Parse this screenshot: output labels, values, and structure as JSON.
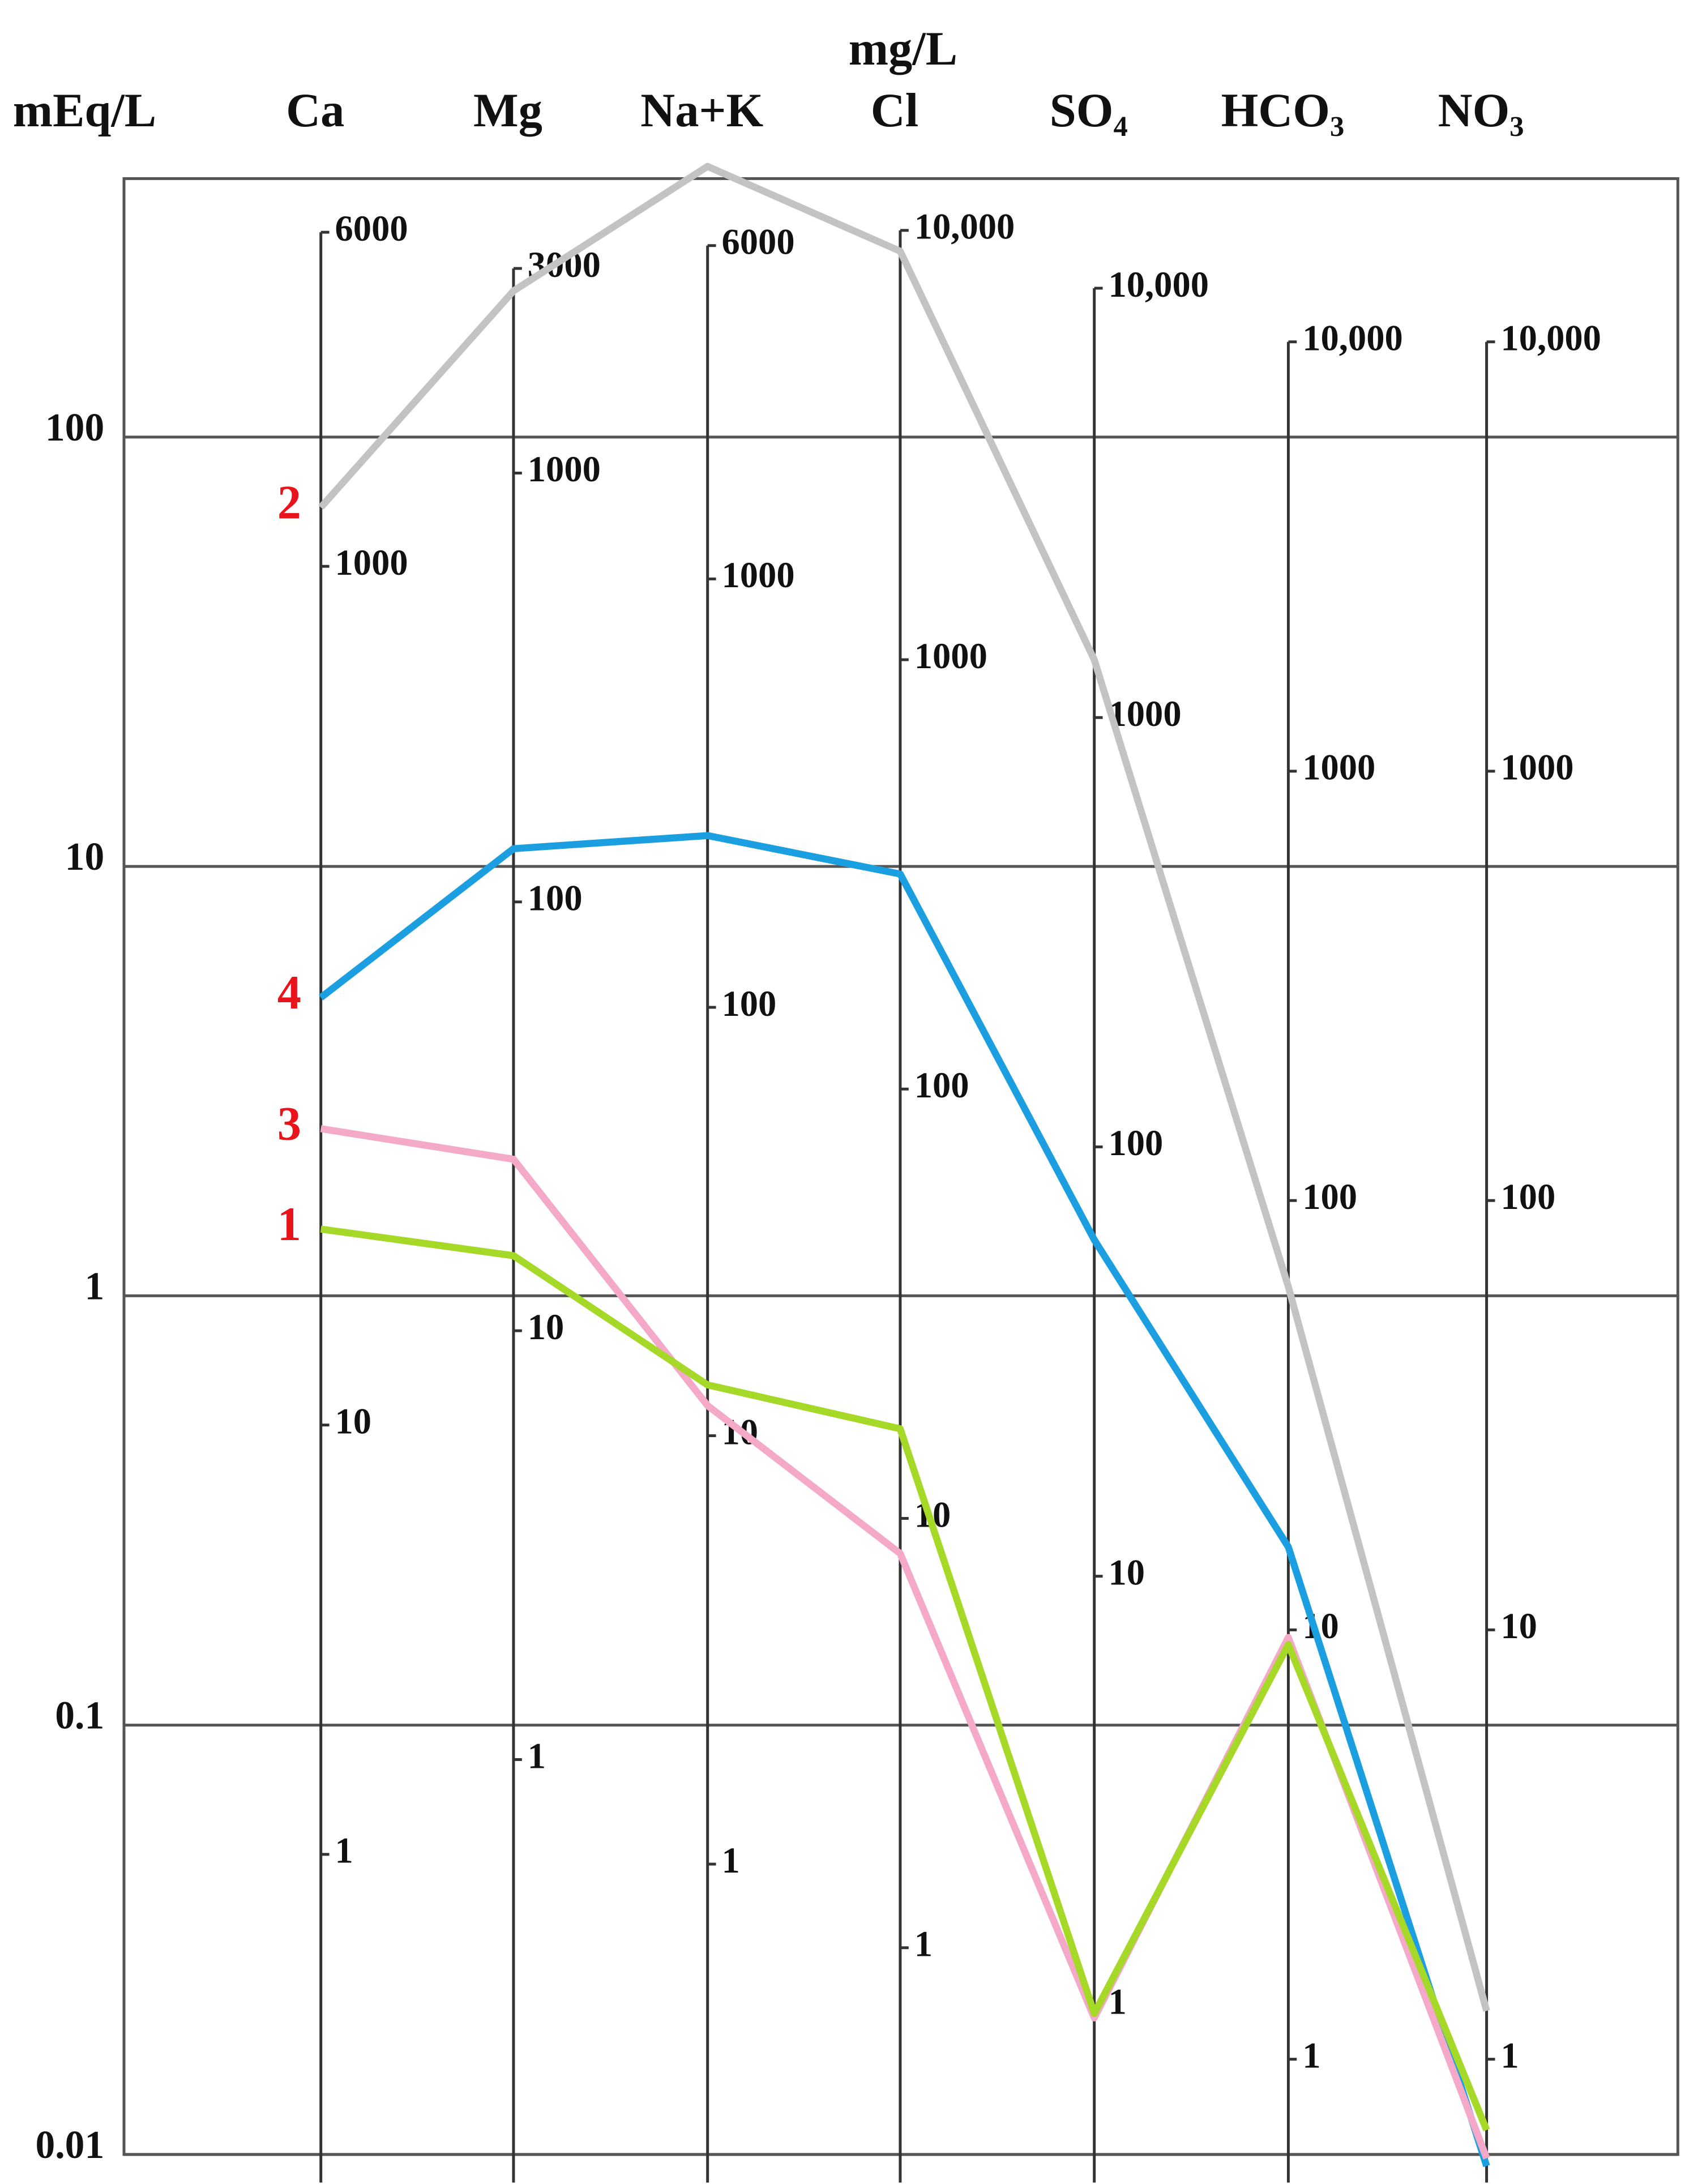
{
  "chart_data": {
    "type": "line",
    "y_label": "mEq/L",
    "y2_label": "mg/L",
    "log_y": true,
    "grid": true,
    "categories": [
      "Ca",
      "Mg",
      "Na+K",
      "Cl",
      "SO₄",
      "HCO₃",
      "NO₃"
    ],
    "ylim": [
      0.01,
      400
    ],
    "yticks": [
      100,
      10,
      1,
      0.1,
      0.01
    ],
    "series": [
      {
        "name": "2",
        "color": "#c3c3c3",
        "values": [
          68.6,
          219,
          427,
          271,
          30.3,
          1.05,
          0.0216
        ]
      },
      {
        "name": "4",
        "color": "#1b9fe0",
        "values": [
          4.95,
          11.0,
          11.8,
          9.6,
          1.35,
          0.26,
          0.0094
        ]
      },
      {
        "name": "3",
        "color": "#f5a9c8",
        "values": [
          2.45,
          2.08,
          0.555,
          0.251,
          0.0208,
          0.16,
          0.0098
        ]
      },
      {
        "name": "1",
        "color": "#a6d827",
        "values": [
          1.43,
          1.24,
          0.62,
          0.49,
          0.0213,
          0.154,
          0.0114
        ]
      }
    ],
    "category_axes": [
      {
        "ylim": [
          0.2,
          8000
        ],
        "ticks": [
          6000,
          1000,
          10,
          1
        ]
      },
      {
        "ylim": [
          0.12,
          4860
        ],
        "ticks": [
          3000,
          1000,
          100,
          10,
          1
        ]
      },
      {
        "ylim": [
          0.21,
          8600
        ],
        "ticks": [
          6000,
          1000,
          100,
          10,
          1
        ]
      },
      {
        "ylim": [
          0.33,
          13200
        ],
        "ticks": [
          {
            "value": 10000,
            "label": "10,000"
          },
          1000,
          100,
          10,
          1
        ]
      },
      {
        "ylim": [
          0.45,
          18000
        ],
        "ticks": [
          {
            "value": 10000,
            "label": "10,000"
          },
          1000,
          100,
          10,
          1
        ]
      },
      {
        "ylim": [
          0.6,
          24000
        ],
        "ticks": [
          {
            "value": 10000,
            "label": "10,000"
          },
          1000,
          100,
          10,
          1
        ]
      },
      {
        "ylim": [
          0.6,
          24000
        ],
        "ticks": [
          {
            "value": 10000,
            "label": "10,000"
          },
          1000,
          100,
          10,
          1
        ]
      }
    ]
  }
}
